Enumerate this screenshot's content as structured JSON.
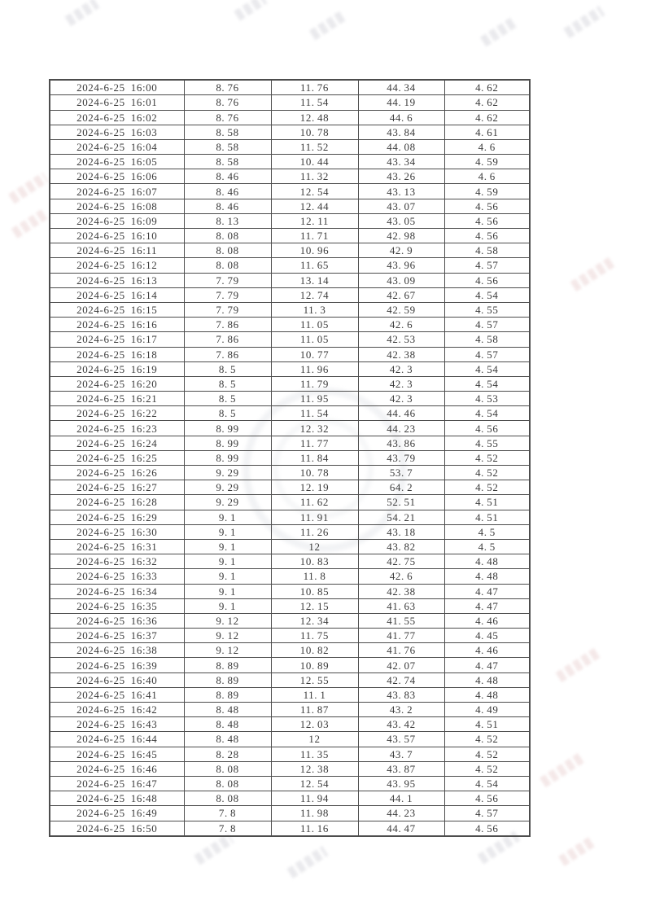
{
  "colors": {
    "paper": "#ffffff",
    "ink": "#3b3b3b",
    "border": "#4d4d4d",
    "watermark_gray": "#d9d9df",
    "watermark_pink": "#ecd6d6"
  },
  "table": {
    "rows": [
      [
        "2024-6-25 16:00",
        "8.76",
        "11.76",
        "44.34",
        "4.62"
      ],
      [
        "2024-6-25 16:01",
        "8.76",
        "11.54",
        "44.19",
        "4.62"
      ],
      [
        "2024-6-25 16:02",
        "8.76",
        "12.48",
        "44.6",
        "4.62"
      ],
      [
        "2024-6-25 16:03",
        "8.58",
        "10.78",
        "43.84",
        "4.61"
      ],
      [
        "2024-6-25 16:04",
        "8.58",
        "11.52",
        "44.08",
        "4.6"
      ],
      [
        "2024-6-25 16:05",
        "8.58",
        "10.44",
        "43.34",
        "4.59"
      ],
      [
        "2024-6-25 16:06",
        "8.46",
        "11.32",
        "43.26",
        "4.6"
      ],
      [
        "2024-6-25 16:07",
        "8.46",
        "12.54",
        "43.13",
        "4.59"
      ],
      [
        "2024-6-25 16:08",
        "8.46",
        "12.44",
        "43.07",
        "4.56"
      ],
      [
        "2024-6-25 16:09",
        "8.13",
        "12.11",
        "43.05",
        "4.56"
      ],
      [
        "2024-6-25 16:10",
        "8.08",
        "11.71",
        "42.98",
        "4.56"
      ],
      [
        "2024-6-25 16:11",
        "8.08",
        "10.96",
        "42.9",
        "4.58"
      ],
      [
        "2024-6-25 16:12",
        "8.08",
        "11.65",
        "43.96",
        "4.57"
      ],
      [
        "2024-6-25 16:13",
        "7.79",
        "13.14",
        "43.09",
        "4.56"
      ],
      [
        "2024-6-25 16:14",
        "7.79",
        "12.74",
        "42.67",
        "4.54"
      ],
      [
        "2024-6-25 16:15",
        "7.79",
        "11.3",
        "42.59",
        "4.55"
      ],
      [
        "2024-6-25 16:16",
        "7.86",
        "11.05",
        "42.6",
        "4.57"
      ],
      [
        "2024-6-25 16:17",
        "7.86",
        "11.05",
        "42.53",
        "4.58"
      ],
      [
        "2024-6-25 16:18",
        "7.86",
        "10.77",
        "42.38",
        "4.57"
      ],
      [
        "2024-6-25 16:19",
        "8.5",
        "11.96",
        "42.3",
        "4.54"
      ],
      [
        "2024-6-25 16:20",
        "8.5",
        "11.79",
        "42.3",
        "4.54"
      ],
      [
        "2024-6-25 16:21",
        "8.5",
        "11.95",
        "42.3",
        "4.53"
      ],
      [
        "2024-6-25 16:22",
        "8.5",
        "11.54",
        "44.46",
        "4.54"
      ],
      [
        "2024-6-25 16:23",
        "8.99",
        "12.32",
        "44.23",
        "4.56"
      ],
      [
        "2024-6-25 16:24",
        "8.99",
        "11.77",
        "43.86",
        "4.55"
      ],
      [
        "2024-6-25 16:25",
        "8.99",
        "11.84",
        "43.79",
        "4.52"
      ],
      [
        "2024-6-25 16:26",
        "9.29",
        "10.78",
        "53.7",
        "4.52"
      ],
      [
        "2024-6-25 16:27",
        "9.29",
        "12.19",
        "64.2",
        "4.52"
      ],
      [
        "2024-6-25 16:28",
        "9.29",
        "11.62",
        "52.51",
        "4.51"
      ],
      [
        "2024-6-25 16:29",
        "9.1",
        "11.91",
        "54.21",
        "4.51"
      ],
      [
        "2024-6-25 16:30",
        "9.1",
        "11.26",
        "43.18",
        "4.5"
      ],
      [
        "2024-6-25 16:31",
        "9.1",
        "12",
        "43.82",
        "4.5"
      ],
      [
        "2024-6-25 16:32",
        "9.1",
        "10.83",
        "42.75",
        "4.48"
      ],
      [
        "2024-6-25 16:33",
        "9.1",
        "11.8",
        "42.6",
        "4.48"
      ],
      [
        "2024-6-25 16:34",
        "9.1",
        "10.85",
        "42.38",
        "4.47"
      ],
      [
        "2024-6-25 16:35",
        "9.1",
        "12.15",
        "41.63",
        "4.47"
      ],
      [
        "2024-6-25 16:36",
        "9.12",
        "12.34",
        "41.55",
        "4.46"
      ],
      [
        "2024-6-25 16:37",
        "9.12",
        "11.75",
        "41.77",
        "4.45"
      ],
      [
        "2024-6-25 16:38",
        "9.12",
        "10.82",
        "41.76",
        "4.46"
      ],
      [
        "2024-6-25 16:39",
        "8.89",
        "10.89",
        "42.07",
        "4.47"
      ],
      [
        "2024-6-25 16:40",
        "8.89",
        "12.55",
        "42.74",
        "4.48"
      ],
      [
        "2024-6-25 16:41",
        "8.89",
        "11.1",
        "43.83",
        "4.48"
      ],
      [
        "2024-6-25 16:42",
        "8.48",
        "11.87",
        "43.2",
        "4.49"
      ],
      [
        "2024-6-25 16:43",
        "8.48",
        "12.03",
        "43.42",
        "4.51"
      ],
      [
        "2024-6-25 16:44",
        "8.48",
        "12",
        "43.57",
        "4.52"
      ],
      [
        "2024-6-25 16:45",
        "8.28",
        "11.35",
        "43.7",
        "4.52"
      ],
      [
        "2024-6-25 16:46",
        "8.08",
        "12.38",
        "43.87",
        "4.52"
      ],
      [
        "2024-6-25 16:47",
        "8.08",
        "12.54",
        "43.95",
        "4.54"
      ],
      [
        "2024-6-25 16:48",
        "8.08",
        "11.94",
        "44.1",
        "4.56"
      ],
      [
        "2024-6-25 16:49",
        "7.8",
        "11.98",
        "44.23",
        "4.57"
      ],
      [
        "2024-6-25 16:50",
        "7.8",
        "11.16",
        "44.47",
        "4.56"
      ]
    ]
  }
}
